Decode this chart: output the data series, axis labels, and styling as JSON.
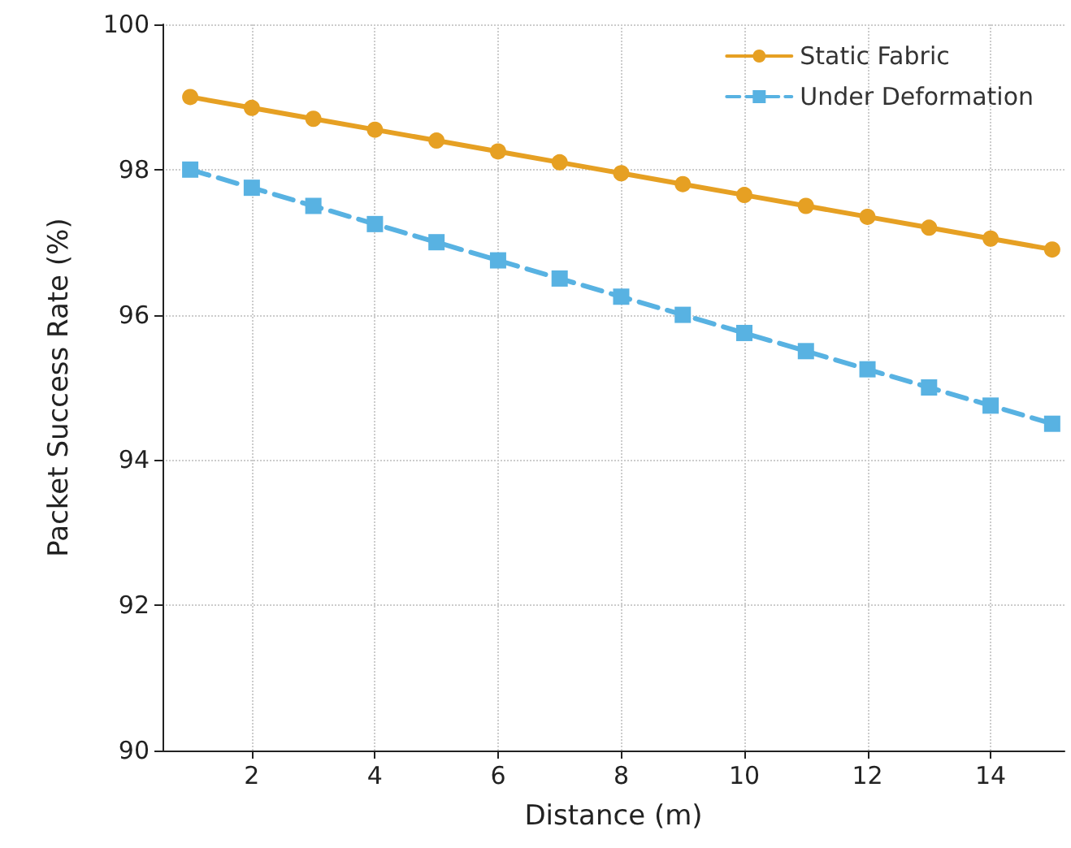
{
  "chart_data": {
    "type": "line",
    "xlabel": "Distance (m)",
    "ylabel": "Packet Success Rate (%)",
    "x": [
      1,
      2,
      3,
      4,
      5,
      6,
      7,
      8,
      9,
      10,
      11,
      12,
      13,
      14,
      15
    ],
    "series": [
      {
        "name": "Static Fabric",
        "color": "#e6a023",
        "marker": "circle",
        "line_style": "solid",
        "values": [
          99,
          98.85,
          98.7,
          98.55,
          98.4,
          98.25,
          98.1,
          97.95,
          97.8,
          97.65,
          97.5,
          97.35,
          97.2,
          97.05,
          96.9
        ]
      },
      {
        "name": "Under Deformation",
        "color": "#58b2e2",
        "marker": "square",
        "line_style": "dashed",
        "values": [
          98,
          97.75,
          97.5,
          97.25,
          97,
          96.75,
          96.5,
          96.25,
          96,
          95.75,
          95.5,
          95.25,
          95,
          94.75,
          94.5
        ]
      }
    ],
    "xlim": [
      0.55,
      15.2
    ],
    "xticks": [
      2,
      4,
      6,
      8,
      10,
      12,
      14
    ],
    "ylim": [
      90,
      100
    ],
    "yticks": [
      90,
      92,
      94,
      96,
      98,
      100
    ],
    "grid": true,
    "legend": "top right"
  }
}
